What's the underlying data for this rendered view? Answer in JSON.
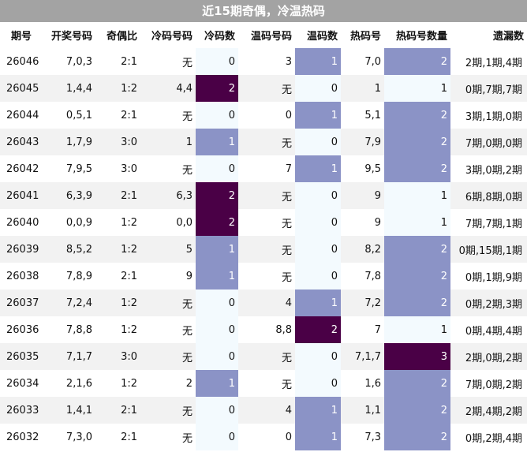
{
  "title": "近15期奇偶，冷温热码",
  "headers": [
    "期号",
    "开奖号码",
    "奇偶比",
    "冷码号码",
    "冷码数",
    "温码号码",
    "温码数",
    "热码号",
    "热码号数量",
    "遗漏数"
  ],
  "rows": [
    [
      "26046",
      "7,0,3",
      "2:1",
      "无",
      "0",
      "3",
      "1",
      "7,0",
      "2",
      "2期,1期,4期"
    ],
    [
      "26045",
      "1,4,4",
      "1:2",
      "4,4",
      "2",
      "无",
      "0",
      "1",
      "1",
      "0期,7期,7期"
    ],
    [
      "26044",
      "0,5,1",
      "2:1",
      "无",
      "0",
      "0",
      "1",
      "5,1",
      "2",
      "3期,1期,0期"
    ],
    [
      "26043",
      "1,7,9",
      "3:0",
      "1",
      "1",
      "无",
      "0",
      "7,9",
      "2",
      "7期,0期,0期"
    ],
    [
      "26042",
      "7,9,5",
      "3:0",
      "无",
      "0",
      "7",
      "1",
      "9,5",
      "2",
      "3期,0期,2期"
    ],
    [
      "26041",
      "6,3,9",
      "2:1",
      "6,3",
      "2",
      "无",
      "0",
      "9",
      "1",
      "6期,8期,0期"
    ],
    [
      "26040",
      "0,0,9",
      "1:2",
      "0,0",
      "2",
      "无",
      "0",
      "9",
      "1",
      "7期,7期,1期"
    ],
    [
      "26039",
      "8,5,2",
      "1:2",
      "5",
      "1",
      "无",
      "0",
      "8,2",
      "2",
      "0期,15期,1期"
    ],
    [
      "26038",
      "7,8,9",
      "2:1",
      "9",
      "1",
      "无",
      "0",
      "7,8",
      "2",
      "0期,1期,9期"
    ],
    [
      "26037",
      "7,2,4",
      "1:2",
      "无",
      "0",
      "4",
      "1",
      "7,2",
      "2",
      "0期,2期,3期"
    ],
    [
      "26036",
      "7,8,8",
      "1:2",
      "无",
      "0",
      "8,8",
      "2",
      "7",
      "1",
      "0期,4期,4期"
    ],
    [
      "26035",
      "7,1,7",
      "3:0",
      "无",
      "0",
      "无",
      "0",
      "7,1,7",
      "3",
      "2期,0期,2期"
    ],
    [
      "26034",
      "2,1,6",
      "1:2",
      "2",
      "1",
      "无",
      "0",
      "1,6",
      "2",
      "7期,0期,2期"
    ],
    [
      "26033",
      "1,4,1",
      "2:1",
      "无",
      "0",
      "4",
      "1",
      "1,1",
      "2",
      "2期,4期,2期"
    ],
    [
      "26032",
      "7,3,0",
      "2:1",
      "无",
      "0",
      "0",
      "1",
      "7,3",
      "2",
      "0期,2期,4期"
    ]
  ]
}
